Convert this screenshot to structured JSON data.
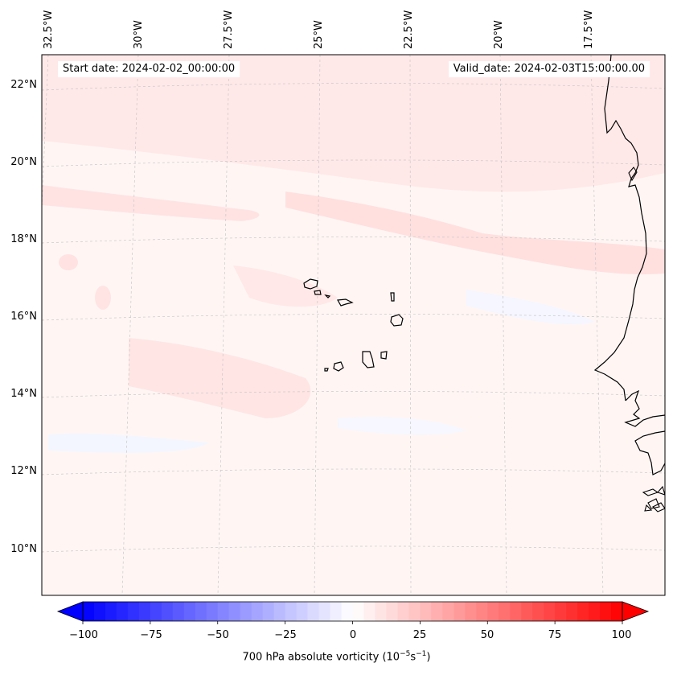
{
  "map": {
    "start_date": "Start date: 2024-02-02_00:00:00",
    "valid_date": "Valid_date: 2024-02-03T15:00:00.00",
    "longitude_labels": [
      "32.5°W",
      "30°W",
      "27.5°W",
      "25°W",
      "22.5°W",
      "20°W",
      "17.5°W"
    ],
    "latitude_labels": [
      "22°N",
      "20°N",
      "18°N",
      "16°N",
      "14°N",
      "12°N",
      "10°N"
    ],
    "lon_range": [
      -33,
      -16
    ],
    "lat_range": [
      9,
      23
    ],
    "features": [
      "cape-verde-islands",
      "west-african-coastline"
    ],
    "field_colors": {
      "background_vorticity": "#fff5f3",
      "weak_positive": "#ffe6e6",
      "weak_negative": "#f4f6ff"
    }
  },
  "colorbar": {
    "label_text": "700 hPa absolute vorticity (10",
    "label_exp1": "−5",
    "label_mid": "s",
    "label_exp2": "−1",
    "label_end": ")",
    "ticks": [
      "−100",
      "−75",
      "−50",
      "−25",
      "0",
      "25",
      "50",
      "75",
      "100"
    ],
    "range": [
      -100,
      100
    ],
    "colormap": "bwr",
    "min_color": "#0000ff",
    "mid_color": "#ffffff",
    "max_color": "#ff0000"
  }
}
